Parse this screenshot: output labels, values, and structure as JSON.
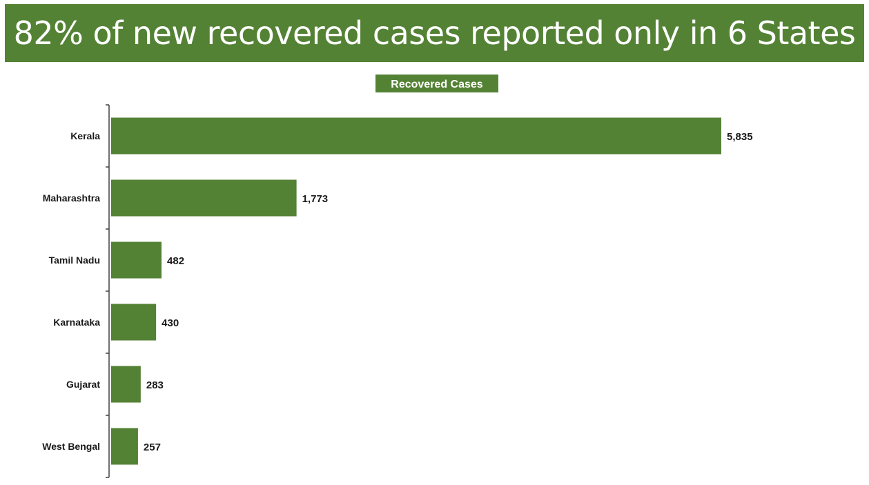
{
  "header": {
    "title": "82% of new recovered cases reported only in 6 States"
  },
  "chart_data": {
    "type": "bar",
    "orientation": "horizontal",
    "title": "",
    "legend": {
      "label": "Recovered Cases",
      "placement": "top-center"
    },
    "categories": [
      "Kerala",
      "Maharashtra",
      "Tamil Nadu",
      "Karnataka",
      "Gujarat",
      "West Bengal"
    ],
    "series": [
      {
        "name": "Recovered Cases",
        "values": [
          5835,
          1773,
          482,
          430,
          283,
          257
        ],
        "labels": [
          "5,835",
          "1,773",
          "482",
          "430",
          "283",
          "257"
        ]
      }
    ],
    "xlim": [
      0,
      5835
    ],
    "grid": false
  },
  "colors": {
    "bar": "#548235",
    "banner": "#548235"
  }
}
